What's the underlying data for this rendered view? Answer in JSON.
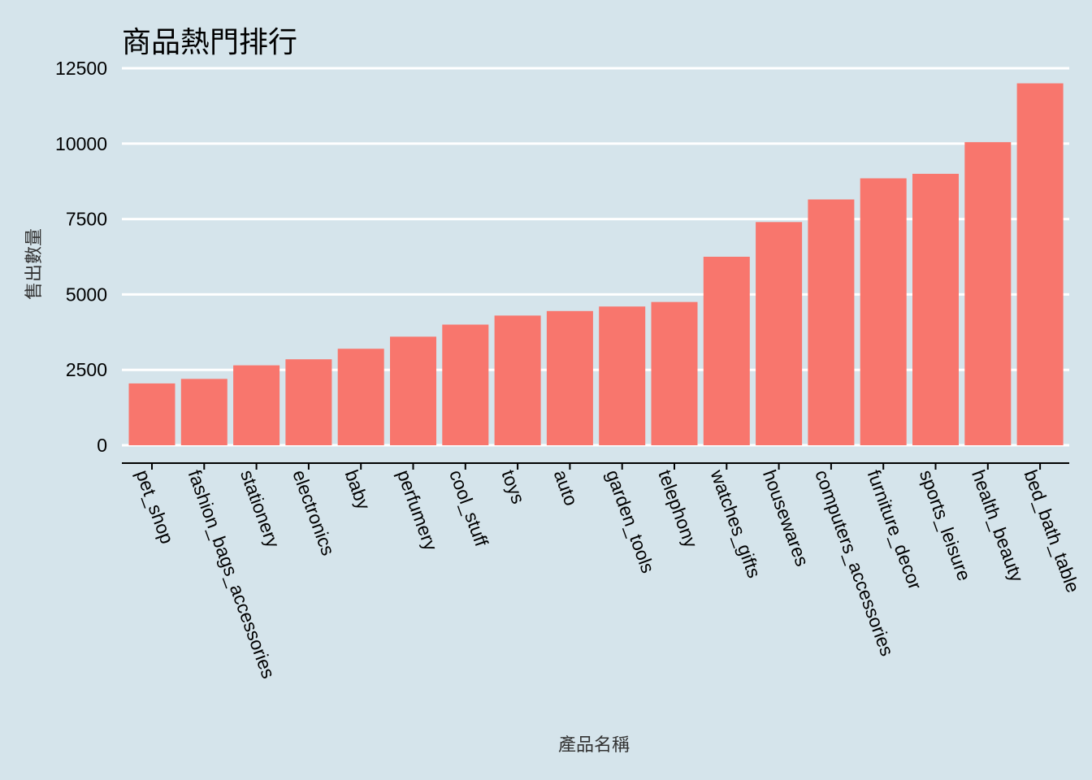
{
  "chart_data": {
    "type": "bar",
    "title": "商品熱門排行",
    "xlabel": "產品名稱",
    "ylabel": "售出數量",
    "ylim": [
      0,
      12500
    ],
    "yticks": [
      0,
      2500,
      5000,
      7500,
      10000,
      12500
    ],
    "grid": "horizontal",
    "legend": "none",
    "bar_color": "#F8766D",
    "background_color": "#D5E4EB",
    "categories": [
      "pet_shop",
      "fashion_bags_accessories",
      "stationery",
      "electronics",
      "baby",
      "perfumery",
      "cool_stuff",
      "toys",
      "auto",
      "garden_tools",
      "telephony",
      "watches_gifts",
      "housewares",
      "computers_accessories",
      "furniture_decor",
      "sports_leisure",
      "health_beauty",
      "bed_bath_table"
    ],
    "values": [
      2050,
      2200,
      2650,
      2850,
      3200,
      3600,
      4000,
      4300,
      4450,
      4600,
      4750,
      6250,
      7400,
      8150,
      8850,
      9000,
      10050,
      12000
    ]
  }
}
